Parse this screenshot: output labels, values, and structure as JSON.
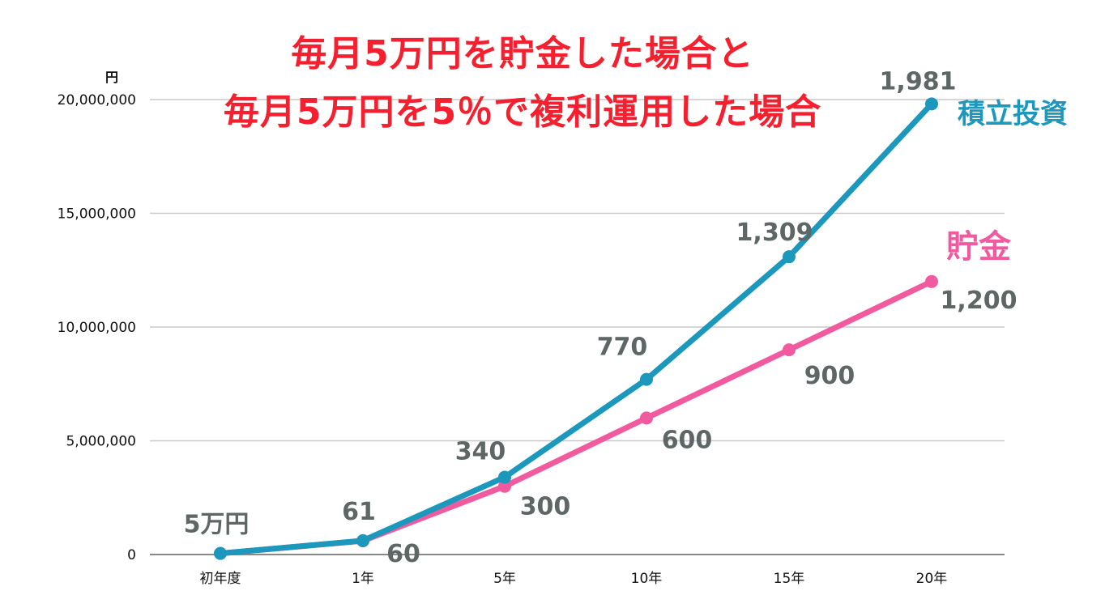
{
  "title_lines": [
    "毎月5万円を貯金した場合と",
    "毎月5万円を5％で複利運用した場合"
  ],
  "colors": {
    "title": "#f5202f",
    "investment": "#1b98bb",
    "savings": "#f25aa0",
    "data_label": "#5e6766",
    "axis_text": "#111111",
    "grid": "#c8c8c8",
    "baseline": "#888888"
  },
  "chart_data": {
    "type": "line",
    "title": "毎月5万円を貯金した場合と 毎月5万円を5％で複利運用した場合",
    "xlabel": "",
    "ylabel": "円",
    "categories": [
      "初年度",
      "1年",
      "5年",
      "10年",
      "15年",
      "20年"
    ],
    "ylim": [
      0,
      20000000
    ],
    "yticks": [
      0,
      5000000,
      10000000,
      15000000,
      20000000
    ],
    "ytick_labels": [
      "0",
      "5,000,000",
      "10,000,000",
      "15,000,000",
      "20,000,000"
    ],
    "grid": true,
    "legend_position": "inline-right",
    "series": [
      {
        "name": "積立投資",
        "color": "#1b98bb",
        "values": [
          50000,
          610000,
          3400000,
          7700000,
          13090000,
          19810000
        ],
        "labels": [
          "5万円",
          "61",
          "340",
          "770",
          "1,309",
          "1,981"
        ]
      },
      {
        "name": "貯金",
        "color": "#f25aa0",
        "values": [
          50000,
          600000,
          3000000,
          6000000,
          9000000,
          12000000
        ],
        "labels": [
          "",
          "60",
          "300",
          "600",
          "900",
          "1,200"
        ]
      }
    ]
  }
}
